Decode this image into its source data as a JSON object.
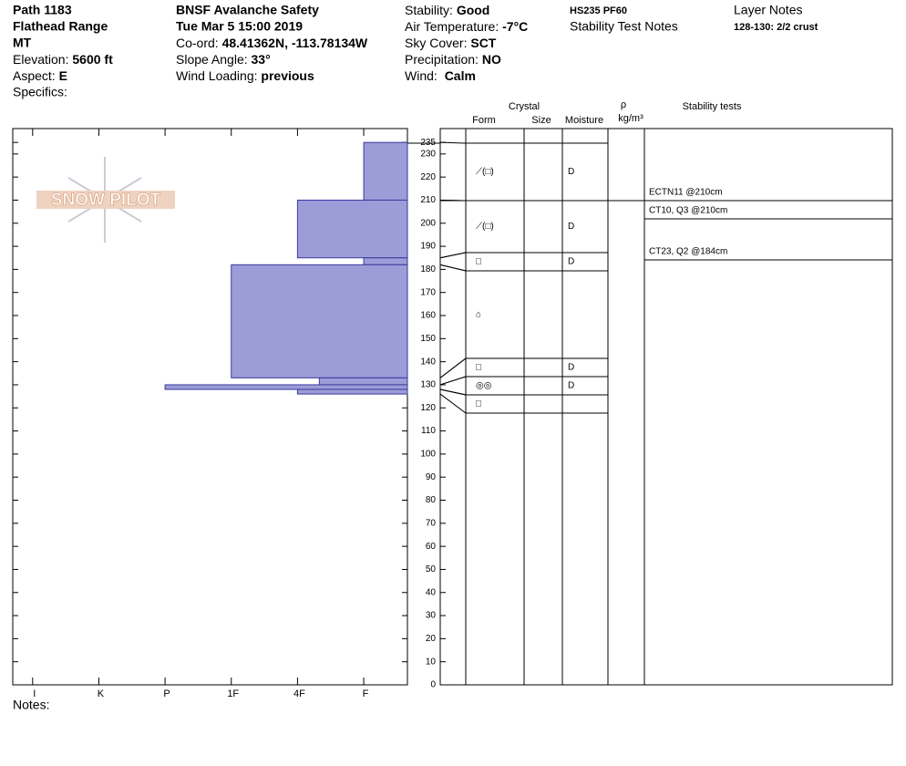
{
  "header": {
    "path": "Path 1183",
    "range": "Flathead Range",
    "state": "MT",
    "elevation_label": "Elevation:",
    "elevation": "5600 ft",
    "aspect_label": "Aspect:",
    "aspect": "E",
    "specifics_label": "Specifics:",
    "organization": "BNSF Avalanche Safety",
    "datetime": "Tue Mar 5 15:00 2019",
    "coord_label": "Co-ord:",
    "coord": "48.41362N, -113.78134W",
    "slope_label": "Slope Angle:",
    "slope": "33°",
    "wind_loading_label": "Wind Loading:",
    "wind_loading": "previous",
    "stability_label": "Stability:",
    "stability": "Good",
    "air_temp_label": "Air Temperature:",
    "air_temp": "-7°C",
    "sky_label": "Sky Cover:",
    "sky": "SCT",
    "precip_label": "Precipitation:",
    "precip": "NO",
    "wind_label": "Wind:",
    "wind": "Calm",
    "hs_pf": "HS235  PF60",
    "stability_notes_label": "Stability Test Notes",
    "layer_notes_label": "Layer Notes",
    "layer_notes": "128-130: 2/2 crust",
    "notes_label": "Notes:",
    "logo": "SNOW PILOT"
  },
  "table_headers": {
    "crystal": "Crystal",
    "form": "Form",
    "size": "Size",
    "moisture": "Moisture",
    "rho": "ρ",
    "density": "kg/m³",
    "stability_tests": "Stability tests"
  },
  "stability_tests": [
    "ECTN11 @210cm",
    "CT10, Q3 @210cm",
    "CT23, Q2 @184cm"
  ],
  "chart_data": {
    "type": "snow-profile",
    "ylim": [
      0,
      241
    ],
    "yticks": [
      0,
      10,
      20,
      30,
      40,
      50,
      60,
      70,
      80,
      90,
      100,
      110,
      120,
      130,
      140,
      150,
      160,
      170,
      180,
      190,
      200,
      210,
      220,
      230,
      235
    ],
    "xlim": [
      6.3,
      0.34
    ],
    "xticks": [
      {
        "value": 6,
        "label": "I"
      },
      {
        "value": 5,
        "label": "K"
      },
      {
        "value": 4,
        "label": "P"
      },
      {
        "value": 3,
        "label": "1F"
      },
      {
        "value": 2,
        "label": "4F"
      },
      {
        "value": 1,
        "label": "F"
      }
    ],
    "color": "#9c9cd8",
    "layers": [
      {
        "top": 235,
        "bottom": 210,
        "hardness": 1,
        "form": "⟋(□)",
        "moisture": "D"
      },
      {
        "top": 210,
        "bottom": 185,
        "hardness": 2,
        "form": "⟋(□)",
        "moisture": "D"
      },
      {
        "top": 185,
        "bottom": 182,
        "hardness": 1,
        "form": "□",
        "moisture": "D"
      },
      {
        "top": 182,
        "bottom": 133,
        "hardness": 3,
        "form": "⌂",
        "moisture": null
      },
      {
        "top": 133,
        "bottom": 130,
        "hardness": 1.67,
        "form": "□",
        "moisture": "D"
      },
      {
        "top": 130,
        "bottom": 128,
        "hardness": 4,
        "form": "◎◎",
        "moisture": "D"
      },
      {
        "top": 128,
        "bottom": 126,
        "hardness": 2,
        "form": "□",
        "moisture": null
      }
    ]
  }
}
